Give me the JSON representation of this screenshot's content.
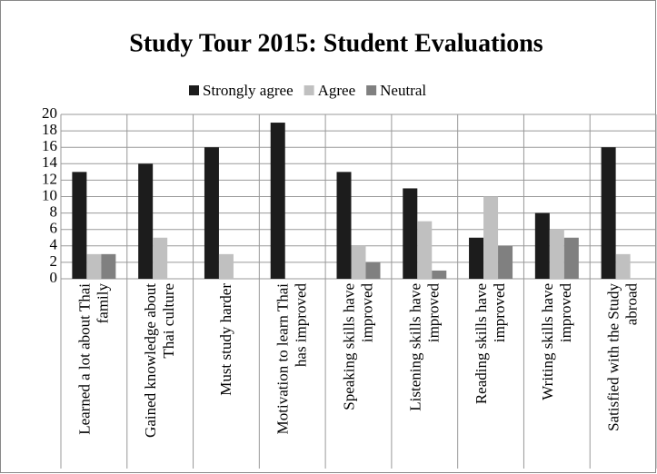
{
  "chart_data": {
    "type": "bar",
    "title": "Study Tour 2015: Student Evaluations",
    "categories": [
      "Learned a lot about Thai family",
      "Gained knowledge about Thai culture",
      "Must study harder",
      "Motivation to learn Thai has improved",
      "Speaking skills have improved",
      "Listening skills have improved",
      "Reading skills have improved",
      "Writing skills have improved",
      "Satisfied with the Study abroad"
    ],
    "series": [
      {
        "name": "Strongly agree",
        "color": "#1c1c1c",
        "values": [
          13,
          14,
          16,
          19,
          13,
          11,
          5,
          8,
          16
        ]
      },
      {
        "name": "Agree",
        "color": "#c0c0c0",
        "values": [
          3,
          5,
          3,
          0,
          4,
          7,
          10,
          6,
          3
        ]
      },
      {
        "name": "Neutral",
        "color": "#808080",
        "values": [
          3,
          0,
          0,
          0,
          2,
          1,
          4,
          5,
          0
        ]
      }
    ],
    "ylim": [
      0,
      20
    ],
    "yticks": [
      0,
      2,
      4,
      6,
      8,
      10,
      12,
      14,
      16,
      18,
      20
    ],
    "grid": true,
    "legend": "top"
  }
}
